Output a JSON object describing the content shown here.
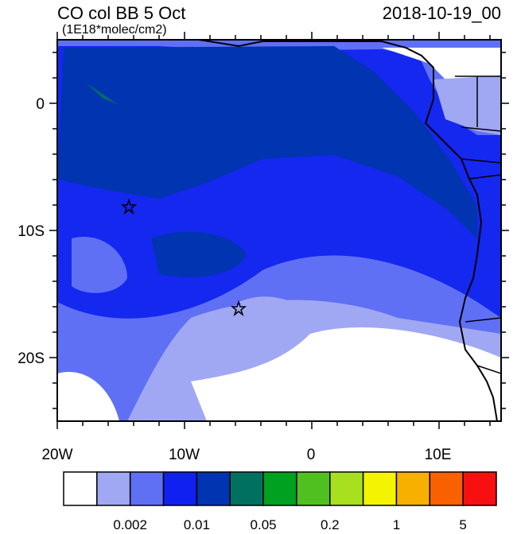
{
  "title": "CO col BB 5 Oct",
  "units": "(1E18*molec/cm2)",
  "date": "2018-10-19_00",
  "lat_ticks": [
    "0",
    "10S",
    "20S"
  ],
  "lon_ticks": [
    "20W",
    "10W",
    "0",
    "10E"
  ],
  "colorbar": {
    "colors": [
      "#ffffff",
      "#a0a8f4",
      "#6070f4",
      "#1020f0",
      "#0034b0",
      "#007060",
      "#00a020",
      "#50c020",
      "#a8e020",
      "#f4f400",
      "#f8b000",
      "#f86000",
      "#f81010"
    ],
    "labels": [
      "0.002",
      "0.01",
      "0.05",
      "0.2",
      "1",
      "5"
    ]
  }
}
